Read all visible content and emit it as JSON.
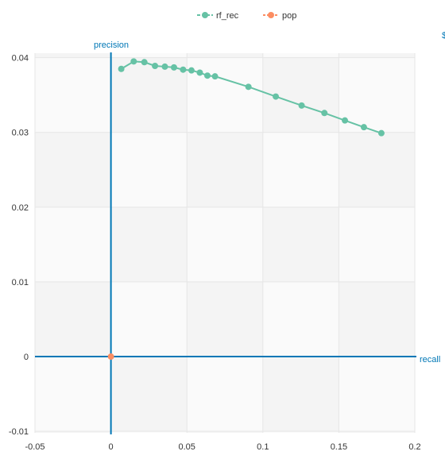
{
  "chart_data": {
    "type": "scatter",
    "xlabel": "recall",
    "ylabel": "precision",
    "xlim": [
      -0.05,
      0.2
    ],
    "ylim": [
      -0.0102,
      0.0406
    ],
    "xticks": [
      -0.05,
      0,
      0.05,
      0.1,
      0.15,
      0.2
    ],
    "xtick_labels": [
      "-0.05",
      "0",
      "0.05",
      "0.1",
      "0.15",
      "0.2"
    ],
    "yticks": [
      -0.01,
      0,
      0.01,
      0.02,
      0.03,
      0.04
    ],
    "ytick_labels": [
      "-0.01",
      "0",
      "0.01",
      "0.02",
      "0.03",
      "0.04"
    ],
    "grid": true,
    "legend_position": "top-center",
    "edge_glyph": "$",
    "series": [
      {
        "name": "rf_rec",
        "color": "#66c2a5",
        "line": true,
        "points": [
          {
            "x": 0.0068,
            "y": 0.0385
          },
          {
            "x": 0.015,
            "y": 0.0395
          },
          {
            "x": 0.022,
            "y": 0.0394
          },
          {
            "x": 0.029,
            "y": 0.0389
          },
          {
            "x": 0.0355,
            "y": 0.0388
          },
          {
            "x": 0.0415,
            "y": 0.0387
          },
          {
            "x": 0.0475,
            "y": 0.0384
          },
          {
            "x": 0.053,
            "y": 0.0383
          },
          {
            "x": 0.0585,
            "y": 0.038
          },
          {
            "x": 0.0635,
            "y": 0.0376
          },
          {
            "x": 0.0685,
            "y": 0.0375
          },
          {
            "x": 0.0905,
            "y": 0.0361
          },
          {
            "x": 0.1085,
            "y": 0.0348
          },
          {
            "x": 0.1255,
            "y": 0.0336
          },
          {
            "x": 0.1405,
            "y": 0.0326
          },
          {
            "x": 0.154,
            "y": 0.0316
          },
          {
            "x": 0.1665,
            "y": 0.0307
          },
          {
            "x": 0.178,
            "y": 0.0299
          }
        ]
      },
      {
        "name": "pop",
        "color": "#fc8d62",
        "line": false,
        "points": [
          {
            "x": 0.0,
            "y": 0.0
          }
        ]
      }
    ]
  }
}
